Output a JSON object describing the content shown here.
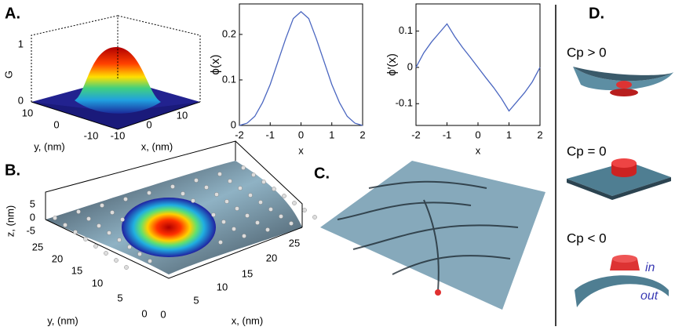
{
  "chart_data": [
    {
      "type": "line",
      "x_label": "x",
      "y_label": "ϕ(x)",
      "x": [
        -2,
        -1.75,
        -1.5,
        -1.25,
        -1,
        -0.75,
        -0.5,
        -0.25,
        0,
        0.25,
        0.5,
        0.75,
        1,
        1.25,
        1.5,
        1.75,
        2
      ],
      "series": [
        {
          "color": "#4a66c0",
          "values": [
            0,
            0.005,
            0.02,
            0.05,
            0.09,
            0.14,
            0.19,
            0.235,
            0.25,
            0.235,
            0.19,
            0.14,
            0.09,
            0.05,
            0.02,
            0.005,
            0
          ]
        }
      ],
      "xlim": [
        -2,
        2
      ],
      "xticks": [
        -2,
        -1,
        0,
        1,
        2
      ],
      "ylim": [
        0,
        0.267
      ],
      "yticks": [
        0,
        0.1,
        0.2
      ]
    },
    {
      "type": "line",
      "x_label": "x",
      "y_label": "ϕ′(x)",
      "x": [
        -2,
        -1.75,
        -1.5,
        -1.25,
        -1,
        -0.75,
        -0.5,
        -0.25,
        0,
        0.25,
        0.5,
        0.75,
        1,
        1.25,
        1.5,
        1.75,
        2
      ],
      "series": [
        {
          "color": "#4a66c0",
          "values": [
            0,
            0.04,
            0.07,
            0.095,
            0.12,
            0.085,
            0.055,
            0.028,
            0,
            -0.028,
            -0.055,
            -0.085,
            -0.12,
            -0.095,
            -0.07,
            -0.04,
            0
          ]
        }
      ],
      "xlim": [
        -2,
        2
      ],
      "xticks": [
        -2,
        -1,
        0,
        1,
        2
      ],
      "ylim": [
        -0.16,
        0.175
      ],
      "yticks": [
        -0.1,
        0,
        0.1
      ]
    }
  ],
  "panels": {
    "a": {
      "label": "A.",
      "z_label": "G",
      "z_ticks": [
        "1",
        "0"
      ],
      "y_ticks": [
        "10",
        "0",
        "-10"
      ],
      "y_label": "y, (nm)",
      "x_ticks": [
        "-10",
        "0",
        "10"
      ],
      "x_label": "x, (nm)"
    },
    "b": {
      "label": "B.",
      "z_label": "z, (nm)",
      "z_ticks": [
        "5",
        "0",
        "-5"
      ],
      "y_ticks": [
        "25",
        "20",
        "15",
        "10",
        "5",
        "0"
      ],
      "y_label": "y, (nm)",
      "x_ticks": [
        "0",
        "5",
        "10",
        "15",
        "20",
        "25"
      ],
      "x_label": "x, (nm)"
    },
    "c": {
      "label": "C."
    },
    "d": {
      "label": "D.",
      "cases": [
        "Cp > 0",
        "Cp = 0",
        "Cp < 0"
      ],
      "inner": "in",
      "outer": "out"
    }
  }
}
